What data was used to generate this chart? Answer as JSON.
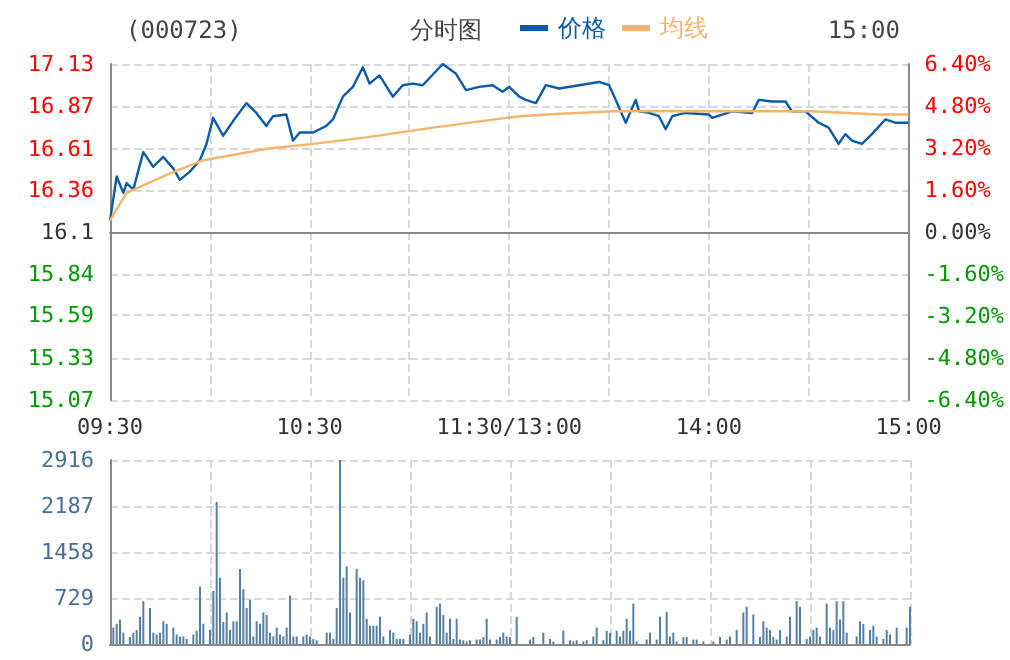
{
  "chart_data": [
    {
      "type": "line",
      "title": "(000723)",
      "subtitle": "分时图",
      "annotations": [
        "15:00"
      ],
      "categories": [
        "09:30",
        null,
        null,
        null,
        null,
        null,
        null,
        null,
        null,
        null,
        null,
        null,
        null,
        null,
        null,
        null,
        null,
        null,
        null,
        null,
        null,
        null,
        null,
        null,
        null,
        null,
        null,
        null,
        null,
        null,
        null,
        null,
        null,
        null,
        null,
        null,
        null,
        null,
        null,
        null,
        null,
        null,
        null,
        null,
        null,
        null,
        null,
        null,
        null,
        null,
        null,
        null,
        null,
        null,
        null,
        null,
        null,
        null,
        null,
        null,
        "10:30",
        null,
        null,
        null,
        null,
        null,
        null,
        null,
        null,
        null,
        null,
        null,
        null,
        null,
        null,
        null,
        null,
        null,
        null,
        null,
        null,
        null,
        null,
        null,
        null,
        null,
        null,
        null,
        null,
        null,
        null,
        null,
        null,
        null,
        null,
        null,
        null,
        null,
        null,
        null,
        null,
        null,
        null,
        null,
        null,
        null,
        null,
        null,
        null,
        null,
        null,
        null,
        null,
        null,
        null,
        null,
        null,
        null,
        null,
        null,
        "11:30/13:00",
        null,
        null,
        null,
        null,
        null,
        null,
        null,
        null,
        null,
        null,
        null,
        null,
        null,
        null,
        null,
        null,
        null,
        null,
        null,
        null,
        null,
        null,
        null,
        null,
        null,
        null,
        null,
        null,
        null,
        null,
        null,
        null,
        null,
        null,
        null,
        null,
        null,
        null,
        null,
        null,
        null,
        null,
        null,
        null,
        null,
        null,
        null,
        null,
        null,
        null,
        null,
        null,
        null,
        null,
        null,
        null,
        null,
        null,
        null,
        "14:00",
        null,
        null,
        null,
        null,
        null,
        null,
        null,
        null,
        null,
        null,
        null,
        null,
        null,
        null,
        null,
        null,
        null,
        null,
        null,
        null,
        null,
        null,
        null,
        null,
        null,
        null,
        null,
        null,
        null,
        null,
        null,
        null,
        null,
        null,
        null,
        null,
        null,
        null,
        null,
        null,
        null,
        null,
        null,
        null,
        null,
        null,
        null,
        null,
        null,
        null,
        null,
        null,
        null,
        null,
        null,
        null,
        null,
        null,
        null,
        "15:00"
      ],
      "series": [
        {
          "name": "价格",
          "color": "#0b5bab",
          "values": [
            16.17,
            null,
            16.44,
            null,
            16.34,
            16.4,
            null,
            16.36,
            null,
            null,
            16.59,
            null,
            null,
            16.5,
            null,
            null,
            16.56,
            null,
            null,
            16.49,
            null,
            16.42,
            null,
            null,
            16.47,
            null,
            null,
            16.54,
            null,
            16.64,
            null,
            16.8,
            null,
            null,
            16.69,
            null,
            null,
            16.78,
            null,
            null,
            null,
            16.89,
            null,
            null,
            16.83,
            null,
            null,
            16.75,
            null,
            16.81,
            null,
            null,
            null,
            16.82,
            null,
            16.66,
            null,
            16.71,
            null,
            null,
            null,
            16.71,
            null,
            null,
            null,
            16.75,
            null,
            16.79,
            null,
            null,
            16.93,
            null,
            null,
            16.99,
            null,
            null,
            17.11,
            null,
            17.01,
            null,
            null,
            17.06,
            null,
            null,
            null,
            16.93,
            null,
            null,
            17.0,
            null,
            null,
            17.01,
            null,
            null,
            17.0,
            null,
            null,
            null,
            null,
            null,
            17.13,
            null,
            null,
            null,
            17.07,
            null,
            null,
            16.97,
            null,
            null,
            null,
            16.99,
            null,
            null,
            null,
            17.0,
            null,
            null,
            16.96,
            null,
            16.99,
            null,
            null,
            16.93,
            null,
            16.91,
            null,
            null,
            16.89,
            null,
            null,
            17.0,
            null,
            null,
            null,
            16.98,
            null,
            null,
            null,
            null,
            null,
            17.0,
            null,
            null,
            null,
            null,
            null,
            17.02,
            null,
            null,
            17.0,
            null,
            16.91,
            null,
            null,
            16.77,
            null,
            null,
            16.91,
            16.84,
            null,
            null,
            16.83,
            null,
            null,
            16.81,
            null,
            16.73,
            null,
            16.81,
            null,
            null,
            null,
            16.83,
            null,
            null,
            null,
            null,
            null,
            null,
            16.82,
            16.8,
            null,
            null,
            null,
            null,
            null,
            16.84,
            null,
            null,
            null,
            null,
            null,
            16.83,
            null,
            16.91,
            null,
            null,
            null,
            16.9,
            null,
            null,
            null,
            16.9,
            null,
            16.84,
            null,
            null,
            null,
            16.84,
            null,
            null,
            null,
            16.77,
            null,
            null,
            16.74,
            null,
            null,
            16.64,
            null,
            16.7,
            null,
            16.66,
            null,
            null,
            16.64,
            null,
            null,
            16.7,
            null,
            null,
            null,
            16.79,
            null,
            null,
            16.77,
            null,
            null,
            null,
            16.77
          ]
        },
        {
          "name": "均线",
          "color": "#f5b36b",
          "values": [
            16.17,
            null,
            16.24,
            null,
            null,
            16.34,
            null,
            null,
            null,
            null,
            null,
            null,
            null,
            null,
            null,
            null,
            null,
            16.45,
            null,
            null,
            null,
            null,
            null,
            null,
            null,
            null,
            null,
            null,
            16.54,
            null,
            null,
            null,
            null,
            null,
            null,
            null,
            null,
            null,
            null,
            null,
            null,
            null,
            null,
            null,
            null,
            null,
            null,
            16.61,
            null,
            null,
            null,
            null,
            null,
            null,
            null,
            null,
            null,
            null,
            null,
            null,
            null,
            16.64,
            null,
            null,
            null,
            null,
            null,
            null,
            null,
            null,
            null,
            null,
            null,
            null,
            null,
            null,
            null,
            16.68,
            null,
            null,
            null,
            null,
            null,
            null,
            null,
            null,
            null,
            null,
            null,
            null,
            null,
            null,
            null,
            null,
            null,
            null,
            null,
            16.74,
            null,
            null,
            null,
            null,
            null,
            null,
            null,
            null,
            null,
            null,
            null,
            null,
            null,
            null,
            null,
            null,
            null,
            null,
            null,
            null,
            null,
            null,
            null,
            null,
            null,
            16.81,
            null,
            null,
            null,
            null,
            null,
            null,
            null,
            16.82,
            null,
            null,
            null,
            null,
            null,
            null,
            null,
            null,
            null,
            null,
            null,
            null,
            null,
            null,
            null,
            null,
            null,
            null,
            null,
            16.84,
            null,
            null,
            null,
            null,
            null,
            null,
            null,
            null,
            null,
            null,
            null,
            null,
            null,
            null,
            null,
            null,
            null,
            null,
            null,
            16.84,
            null,
            null,
            null,
            null,
            null,
            null,
            null,
            null,
            null,
            null,
            null,
            null,
            null,
            null,
            null,
            null,
            null,
            null,
            null,
            16.84,
            null,
            null,
            null,
            null,
            null,
            null,
            null,
            null,
            null,
            null,
            null,
            null,
            null,
            null,
            null,
            null,
            null,
            null,
            null,
            16.84,
            null,
            null,
            null,
            null,
            null,
            null,
            null,
            null,
            null,
            null,
            null,
            null,
            null,
            null,
            null,
            null,
            null,
            null,
            null,
            16.82,
            null,
            null,
            null,
            null,
            null,
            null,
            null,
            null,
            16.82
          ]
        }
      ],
      "ylim": [
        15.07,
        17.13
      ],
      "yticks": [
        15.07,
        15.33,
        15.59,
        15.84,
        16.1,
        16.36,
        16.61,
        16.87,
        17.13
      ],
      "y2lim": [
        -6.4,
        6.4
      ],
      "y2ticks": [
        {
          "value": -6.4,
          "label": "-6.40%"
        },
        {
          "value": -4.8,
          "label": "-4.80%"
        },
        {
          "value": -3.2,
          "label": "-3.20%"
        },
        {
          "value": -1.6,
          "label": "-1.60%"
        },
        {
          "value": 0,
          "label": "0.00%"
        },
        {
          "value": 1.6,
          "label": "1.60%"
        },
        {
          "value": 3.2,
          "label": "3.20%"
        },
        {
          "value": 4.8,
          "label": "4.80%"
        },
        {
          "value": 6.4,
          "label": "6.40%"
        }
      ],
      "grid": true,
      "legend": "top",
      "line_style": "solid",
      "marker": "none"
    },
    {
      "type": "bar",
      "color": "#5580a5",
      "categories": [
        null,
        null,
        null,
        null,
        null,
        null,
        null,
        null,
        null,
        null,
        null,
        null,
        null,
        null,
        null,
        null,
        null,
        null,
        null,
        null,
        null,
        null,
        null,
        null,
        null,
        null,
        null,
        null,
        null,
        null,
        null,
        null,
        null,
        null,
        null,
        null,
        null,
        null,
        null,
        null,
        null,
        null,
        null,
        null,
        null,
        null,
        null,
        null,
        null,
        null,
        null,
        null,
        null,
        null,
        null,
        null,
        null,
        null,
        null,
        null,
        null,
        null,
        null,
        null,
        null,
        null,
        null,
        null,
        null,
        null,
        null,
        null,
        null,
        null,
        null,
        null,
        null,
        null,
        null,
        null,
        null,
        null,
        null,
        null,
        null,
        null,
        null,
        null,
        null,
        null,
        null,
        null,
        null,
        null,
        null,
        null,
        null,
        null,
        null,
        null,
        null,
        null,
        null,
        null,
        null,
        null,
        null,
        null,
        null,
        null,
        null,
        null,
        null,
        null,
        null,
        null,
        null,
        null,
        null,
        null,
        null,
        null,
        null,
        null,
        null,
        null,
        null,
        null,
        null,
        null,
        null,
        null,
        null,
        null,
        null,
        null,
        null,
        null,
        null,
        null,
        null,
        null,
        null,
        null,
        null,
        null,
        null,
        null,
        null,
        null,
        null,
        null,
        null,
        null,
        null,
        null,
        null,
        null,
        null,
        null,
        null,
        null,
        null,
        null,
        null,
        null,
        null,
        null,
        null,
        null,
        null,
        null,
        null,
        null,
        null,
        null,
        null,
        null,
        null,
        null,
        null,
        null,
        null,
        null,
        null,
        null,
        null,
        null,
        null,
        null,
        null,
        null,
        null,
        null,
        null,
        null,
        null,
        null,
        null,
        null,
        null,
        null,
        null,
        null,
        null,
        null,
        null,
        null,
        null,
        null,
        null,
        null,
        null,
        null,
        null,
        null,
        null,
        null,
        null,
        null,
        null,
        null,
        null,
        null,
        null,
        null,
        null,
        null,
        null,
        null,
        null,
        null,
        null,
        null,
        null,
        null,
        null,
        null,
        null,
        null,
        null
      ],
      "values": [
        null,
        260,
        320,
        390,
        180,
        null,
        110,
        180,
        220,
        430,
        680,
        null,
        570,
        180,
        150,
        180,
        360,
        320,
        null,
        260,
        150,
        120,
        120,
        80,
        null,
        150,
        210,
        910,
        320,
        null,
        220,
        840,
        2250,
        1050,
        350,
        500,
        220,
        360,
        360,
        1190,
        870,
        570,
        700,
        120,
        360,
        320,
        500,
        460,
        180,
        120,
        260,
        150,
        120,
        260,
        770,
        120,
        120,
        null,
        120,
        150,
        120,
        80,
        60,
        null,
        null,
        180,
        180,
        80,
        570,
        2916,
        1050,
        1230,
        500,
        null,
        1190,
        1050,
        1010,
        400,
        290,
        290,
        290,
        430,
        120,
        null,
        220,
        180,
        80,
        80,
        80,
        null,
        150,
        400,
        360,
        180,
        320,
        500,
        120,
        null,
        590,
        640,
        460,
        180,
        400,
        80,
        400,
        70,
        60,
        40,
        60,
        null,
        70,
        70,
        110,
        400,
        70,
        null,
        70,
        110,
        180,
        120,
        110,
        null,
        430,
        null,
        null,
        null,
        70,
        110,
        null,
        null,
        180,
        null,
        80,
        40,
        null,
        null,
        210,
        null,
        60,
        40,
        60,
        null,
        40,
        60,
        null,
        120,
        260,
        null,
        60,
        210,
        180,
        null,
        210,
        120,
        210,
        400,
        210,
        640,
        40,
        null,
        null,
        70,
        180,
        null,
        70,
        430,
        null,
        510,
        120,
        180,
        40,
        null,
        110,
        110,
        null,
        70,
        70,
        null,
        40,
        null,
        null,
        40,
        null,
        110,
        null,
        70,
        120,
        null,
        220,
        null,
        500,
        590,
        null,
        470,
        null,
        110,
        360,
        260,
        220,
        110,
        70,
        220,
        null,
        120,
        430,
        null,
        680,
        590,
        null,
        80,
        120,
        220,
        260,
        120,
        null,
        640,
        260,
        220,
        680,
        390,
        680,
        180,
        null,
        null,
        120,
        360,
        320,
        null,
        220,
        290,
        120,
        null,
        80,
        220,
        150,
        null,
        260,
        null,
        null,
        260,
        590
      ],
      "ylim": [
        0,
        2916
      ],
      "yticks": [
        0,
        729,
        1458,
        2187,
        2916
      ],
      "grid": true,
      "tick_labels": "y"
    }
  ]
}
